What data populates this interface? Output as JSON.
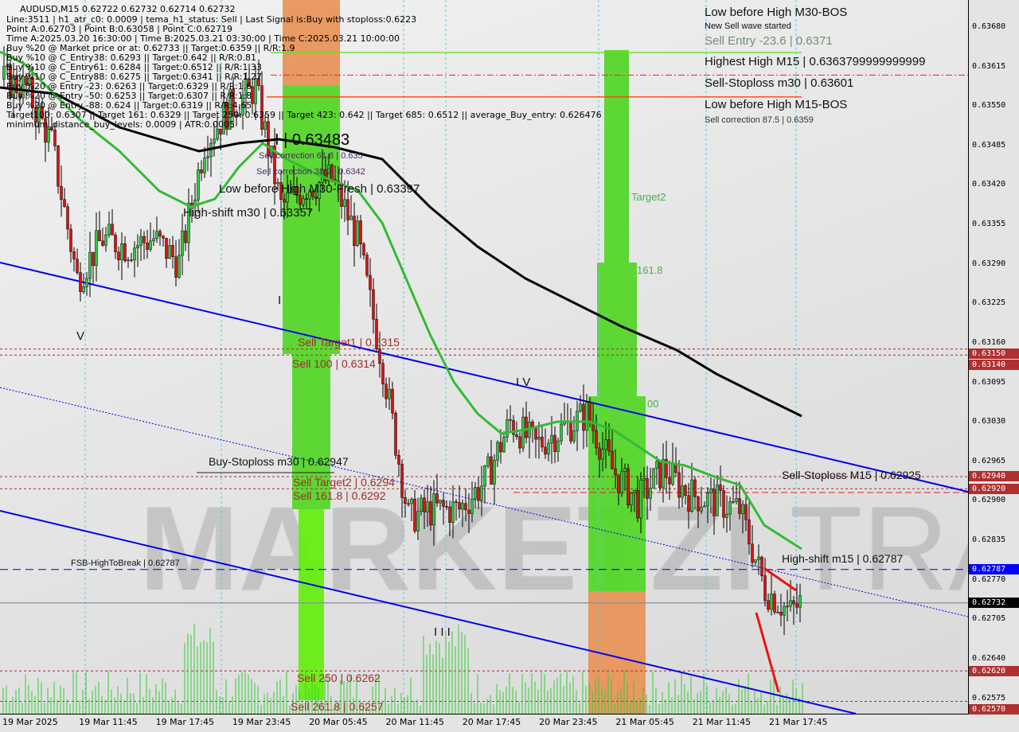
{
  "window": {
    "symbol_line": "AUDUSD,M15  0.62722 0.62732 0.62714 0.62732"
  },
  "info_lines": [
    "Line:3511 | h1_atr_c0: 0.0009 | tema_h1_status: Sell | Last Signal is:Buy with stoploss:0.6223",
    "Point A:0.62703 | Point B:0.63058 | Point C:0.62719",
    "Time A:2025.03.20 16:30:00 | Time B:2025.03.21 03:30:00 | Time C:2025.03.21 10:00:00",
    "Buy %20 @ Market price or at: 0.62733 || Target:0.6359 || R/R:1.9",
    "Buy %10 @ C_Entry38: 0.6293 || Target:0.642 || R/R:0.81",
    "Buy %10 @ C_Entry61: 0.6284 || Target:0.6512 || R/R:1.33",
    "Buy %10 @ C_Entry88: 0.6275 || Target:0.6341 || R/R:1.27",
    "Buy %20 @ Entry -23: 0.6263 || Target:0.6329 || R/R:1.6",
    "Buy %20 @ Entry -50: 0.6253 || Target:0.6307 || R/R:1.8",
    "Buy %20 @ Entry -88: 0.624 || Target:0.6319 || R/R:4.65",
    "Target100: 0.6307 || Target 161: 0.6329 || Target 250: 0.6359 || Target 423: 0.642 || Target 685: 0.6512 || average_Buy_entry: 0.626476",
    "minimum_distance_buy_levels: 0.0009 | ATR:0.0005"
  ],
  "labels": {
    "low_high_m30_bos": "Low before High   M30-BOS",
    "new_sell_wave": "New Sell wave started",
    "sell_entry": "Sell Entry -23.6 | 0.6371",
    "highest_high": "Highest High   M15 | 0.6363799999999999",
    "sell_stoploss_m30": "Sell-Stoploss m30 | 0.63601",
    "low_high_m15_bos": "Low before High   M15-BOS",
    "sell_corr_875": "Sell correction 87.5 | 0.6359",
    "wave_i_price": "I | 0.63483",
    "sell_corr_618": "Sell correction 61.8 | 0.635",
    "low_high_m30_fresh": "Low before High   M30-Fresh | 0.63397",
    "sell_corr_382": "Sell correction 38.2 | 0.6342",
    "high_shift_m30": "High-shift m30 | 0.63357",
    "target2": "Target2",
    "t1618": "161.8",
    "t100": "00",
    "wave_i": "I",
    "wave_v": "V",
    "wave_iv": "I V",
    "wave_iii": "I I I",
    "sell_target1": "Sell Target1 | 0.6315",
    "sell_100": "Sell 100 | 0.6314",
    "buy_stoploss_m30": "Buy-Stoploss m30 | 0.62947",
    "sell_target2": "Sell Target2 | 0.6294",
    "sell_1618": "Sell 161.8 | 0.6292",
    "fsb_high": "FSB-HighToBreak | 0.62787",
    "sell_250": "Sell  250 | 0.6262",
    "sell_2618": "Sell  261.8 | 0.6257",
    "sell_stoploss_m15": "Sell-Stoploss M15 | 0.62925",
    "high_shift_m15": "High-shift m15 | 0.62787"
  },
  "watermark": "MARKETZI TRADE",
  "price_axis": {
    "ticks": [
      "0.63680",
      "0.63615",
      "0.63550",
      "0.63485",
      "0.63420",
      "0.63355",
      "0.63290",
      "0.63225",
      "0.63160",
      "0.63095",
      "0.63030",
      "0.62965",
      "0.62900",
      "0.62835",
      "0.62770",
      "0.62705",
      "0.62640",
      "0.62575"
    ],
    "tags": [
      {
        "text": "0.63150",
        "color": "#b03030"
      },
      {
        "text": "0.63140",
        "color": "#b03030"
      },
      {
        "text": "0.62940",
        "color": "#b03030"
      },
      {
        "text": "0.62920",
        "color": "#b03030"
      },
      {
        "text": "0.62787",
        "color": "#0000ff"
      },
      {
        "text": "0.62732",
        "color": "#000000"
      },
      {
        "text": "0.62620",
        "color": "#b03030"
      },
      {
        "text": "0.62570",
        "color": "#b03030"
      }
    ]
  },
  "time_axis": [
    "19 Mar 2025",
    "19 Mar 11:45",
    "19 Mar 17:45",
    "19 Mar 23:45",
    "20 Mar 05:45",
    "20 Mar 11:45",
    "20 Mar 17:45",
    "20 Mar 23:45",
    "21 Mar 05:45",
    "21 Mar 11:45",
    "21 Mar 17:45"
  ],
  "colors": {
    "bull": "#2ecc40",
    "bear": "#e01010",
    "ma_fast": "#33bb33",
    "ma_slow": "#000000",
    "channel": "#0000ee",
    "zone_green": "#55d62a",
    "zone_orange": "#e8935a"
  },
  "chart_data": {
    "type": "candlestick",
    "symbol": "AUDUSD",
    "timeframe": "M15",
    "ylim": [
      0.6254,
      0.6372
    ],
    "close_path": [
      {
        "t": "19 Mar 06:00",
        "p": 0.63594
      },
      {
        "t": "19 Mar 08:00",
        "p": 0.6358
      },
      {
        "t": "19 Mar 10:00",
        "p": 0.63489
      },
      {
        "t": "19 Mar 12:00",
        "p": 0.63266
      },
      {
        "t": "19 Mar 14:00",
        "p": 0.63332
      },
      {
        "t": "19 Mar 16:00",
        "p": 0.63318
      },
      {
        "t": "19 Mar 18:00",
        "p": 0.63332
      },
      {
        "t": "19 Mar 20:00",
        "p": 0.63292
      },
      {
        "t": "19 Mar 22:00",
        "p": 0.63489
      },
      {
        "t": "20 Mar 00:00",
        "p": 0.63548
      },
      {
        "t": "20 Mar 02:00",
        "p": 0.6358
      },
      {
        "t": "20 Mar 04:00",
        "p": 0.63384
      },
      {
        "t": "20 Mar 06:00",
        "p": 0.63417
      },
      {
        "t": "20 Mar 08:00",
        "p": 0.6343
      },
      {
        "t": "20 Mar 10:00",
        "p": 0.63332
      },
      {
        "t": "20 Mar 12:00",
        "p": 0.63122
      },
      {
        "t": "20 Mar 14:00",
        "p": 0.62873
      },
      {
        "t": "20 Mar 16:00",
        "p": 0.62886
      },
      {
        "t": "20 Mar 18:00",
        "p": 0.62886
      },
      {
        "t": "20 Mar 20:00",
        "p": 0.62932
      },
      {
        "t": "20 Mar 22:00",
        "p": 0.6303
      },
      {
        "t": "21 Mar 00:00",
        "p": 0.62991
      },
      {
        "t": "21 Mar 02:00",
        "p": 0.63017
      },
      {
        "t": "21 Mar 04:00",
        "p": 0.63043
      },
      {
        "t": "21 Mar 06:00",
        "p": 0.62952
      },
      {
        "t": "21 Mar 08:00",
        "p": 0.62899
      },
      {
        "t": "21 Mar 10:00",
        "p": 0.62952
      },
      {
        "t": "21 Mar 12:00",
        "p": 0.62912
      },
      {
        "t": "21 Mar 14:00",
        "p": 0.62899
      },
      {
        "t": "21 Mar 16:00",
        "p": 0.62886
      },
      {
        "t": "21 Mar 18:00",
        "p": 0.62755
      },
      {
        "t": "21 Mar 20:00",
        "p": 0.62716
      },
      {
        "t": "21 Mar 20:45",
        "p": 0.62732
      }
    ],
    "levels": [
      {
        "name": "Highest High M15",
        "price": 0.63638,
        "style": "solid",
        "color": "#66dd22"
      },
      {
        "name": "Sell-Stoploss m30",
        "price": 0.63601,
        "style": "dashdot",
        "color": "#ee2222"
      },
      {
        "name": "Low before High M15-BOS",
        "price": 0.63565,
        "style": "solid",
        "color": "#ff4400"
      },
      {
        "name": "Sell Target1",
        "price": 0.6315,
        "style": "dotted",
        "color": "#a52a2a"
      },
      {
        "name": "Sell 100",
        "price": 0.6314,
        "style": "dotted",
        "color": "#a52a2a"
      },
      {
        "name": "Sell Target2",
        "price": 0.6294,
        "style": "dotted",
        "color": "#a52a2a"
      },
      {
        "name": "Sell 161.8",
        "price": 0.6292,
        "style": "dotted",
        "color": "#a52a2a"
      },
      {
        "name": "FSB-HighToBreak",
        "price": 0.62787,
        "style": "dashed",
        "color": "#0000cc"
      },
      {
        "name": "Current",
        "price": 0.62732,
        "style": "solid",
        "color": "#8a8f98"
      },
      {
        "name": "Sell 250",
        "price": 0.6262,
        "style": "dotted",
        "color": "#a52a2a"
      },
      {
        "name": "Sell 261.8",
        "price": 0.6257,
        "style": "dotted",
        "color": "#a52a2a"
      }
    ]
  }
}
